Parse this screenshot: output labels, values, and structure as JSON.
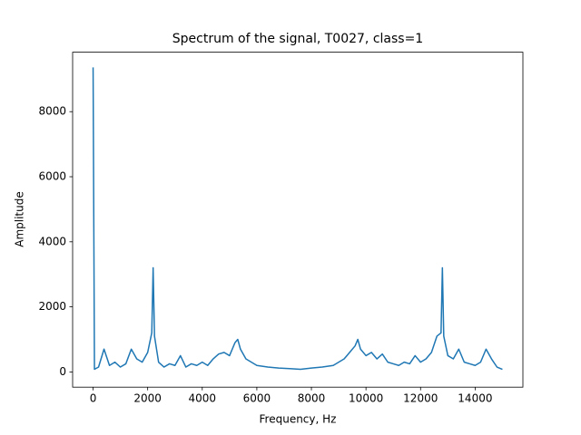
{
  "chart_data": {
    "type": "line",
    "title": "Spectrum of the signal, T0027, class=1",
    "xlabel": "Frequency, Hz",
    "ylabel": "Amplitude",
    "x": [
      0,
      50,
      200,
      400,
      600,
      800,
      1000,
      1200,
      1400,
      1600,
      1800,
      2000,
      2150,
      2200,
      2250,
      2400,
      2600,
      2800,
      3000,
      3200,
      3400,
      3600,
      3800,
      4000,
      4200,
      4400,
      4600,
      4800,
      5000,
      5200,
      5300,
      5400,
      5600,
      5800,
      6000,
      6400,
      6800,
      7200,
      7600,
      8000,
      8400,
      8800,
      9000,
      9200,
      9400,
      9600,
      9700,
      9800,
      10000,
      10200,
      10400,
      10600,
      10800,
      11000,
      11200,
      11400,
      11600,
      11800,
      12000,
      12200,
      12400,
      12600,
      12750,
      12800,
      12850,
      13000,
      13200,
      13400,
      13600,
      13800,
      14000,
      14200,
      14400,
      14600,
      14800,
      15000
    ],
    "series": [
      {
        "color": "#1f77b4",
        "values": [
          9360,
          80,
          150,
          700,
          200,
          300,
          150,
          250,
          700,
          400,
          300,
          600,
          1200,
          3200,
          1100,
          300,
          150,
          250,
          200,
          500,
          150,
          250,
          200,
          300,
          200,
          400,
          550,
          600,
          500,
          900,
          1000,
          700,
          400,
          300,
          200,
          150,
          120,
          100,
          80,
          120,
          150,
          200,
          300,
          400,
          600,
          800,
          1000,
          700,
          500,
          600,
          400,
          550,
          300,
          250,
          200,
          300,
          250,
          500,
          300,
          400,
          600,
          1100,
          1200,
          3200,
          1100,
          500,
          400,
          700,
          300,
          250,
          200,
          300,
          700,
          400,
          150,
          80
        ]
      }
    ],
    "xlim": [
      -750,
      15750
    ],
    "ylim": [
      -468,
      9828
    ],
    "xticks": [
      0,
      2000,
      4000,
      6000,
      8000,
      10000,
      12000,
      14000
    ],
    "yticks": [
      0,
      2000,
      4000,
      6000,
      8000
    ]
  }
}
